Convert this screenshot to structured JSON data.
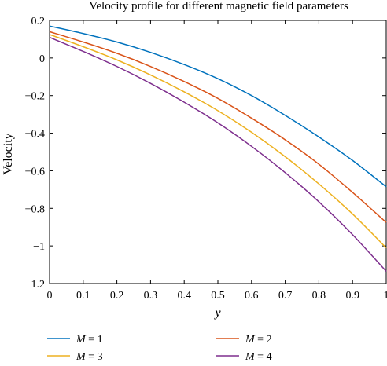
{
  "chart_data": {
    "type": "line",
    "title": "Velocity profile for different magnetic field parameters",
    "xlabel": "y",
    "ylabel": "Velocity",
    "xlim": [
      0,
      1
    ],
    "ylim": [
      -1.2,
      0.2
    ],
    "xticks": [
      0,
      0.1,
      0.2,
      0.3,
      0.4,
      0.5,
      0.6,
      0.7,
      0.8,
      0.9,
      1
    ],
    "xtick_labels": [
      "0",
      "0.1",
      "0.2",
      "0.3",
      "0.4",
      "0.5",
      "0.6",
      "0.7",
      "0.8",
      "0.9",
      "1"
    ],
    "yticks": [
      0.2,
      0,
      -0.2,
      -0.4,
      -0.6,
      -0.8,
      -1,
      -1.2
    ],
    "ytick_labels": [
      "0.2",
      "0",
      "−0.2",
      "−0.4",
      "−0.6",
      "−0.8",
      "−1",
      "−1.2"
    ],
    "grid": false,
    "legend_position": "bottom",
    "x": [
      0,
      0.1,
      0.2,
      0.3,
      0.4,
      0.5,
      0.6,
      0.7,
      0.8,
      0.9,
      1
    ],
    "series": [
      {
        "name": "M = 1",
        "name_var": "M",
        "name_val": " = 1",
        "color": "#0072BD",
        "values": [
          0.17,
          0.13,
          0.085,
          0.03,
          -0.035,
          -0.11,
          -0.2,
          -0.305,
          -0.42,
          -0.545,
          -0.685
        ]
      },
      {
        "name": "M = 2",
        "name_var": "M",
        "name_val": " = 2",
        "color": "#D95319",
        "values": [
          0.14,
          0.085,
          0.025,
          -0.045,
          -0.125,
          -0.215,
          -0.32,
          -0.435,
          -0.565,
          -0.715,
          -0.875
        ]
      },
      {
        "name": "M = 3",
        "name_var": "M",
        "name_val": " = 3",
        "color": "#EDB120",
        "values": [
          0.125,
          0.06,
          -0.01,
          -0.09,
          -0.18,
          -0.28,
          -0.395,
          -0.525,
          -0.67,
          -0.83,
          -1.01
        ]
      },
      {
        "name": "M = 4",
        "name_var": "M",
        "name_val": " = 4",
        "color": "#7E2F8E",
        "values": [
          0.11,
          0.035,
          -0.045,
          -0.135,
          -0.235,
          -0.345,
          -0.47,
          -0.61,
          -0.765,
          -0.94,
          -1.135
        ]
      }
    ]
  }
}
